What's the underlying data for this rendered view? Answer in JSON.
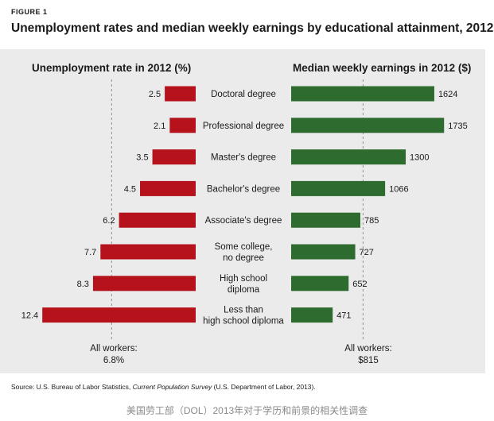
{
  "figure_label": "FIGURE 1",
  "title": "Unemployment rates and median weekly earnings by educational attainment, 2012",
  "left_heading": "Unemployment rate in 2012 (%)",
  "right_heading": "Median weekly earnings in 2012 ($)",
  "all_workers_left": {
    "line1": "All workers:",
    "line2": "6.8%"
  },
  "all_workers_right": {
    "line1": "All workers:",
    "line2": "$815"
  },
  "source": {
    "prefix": "Source: U.S. Bureau of Labor Statistics, ",
    "publication": "Current Population Survey",
    "suffix": " (U.S. Department of Labor, 2013)."
  },
  "caption": "美国劳工部（DOL）2013年对于学历和前景的相关性调查",
  "colors": {
    "unemployment": "#b5121b",
    "earnings": "#2e6b2e",
    "panel": "#ebebeb"
  },
  "chart_data": [
    {
      "type": "bar",
      "orientation": "horizontal",
      "direction": "leftward",
      "title": "Unemployment rate in 2012 (%)",
      "categories": [
        [
          "Doctoral degree"
        ],
        [
          "Professional degree"
        ],
        [
          "Master's degree"
        ],
        [
          "Bachelor's degree"
        ],
        [
          "Associate's degree"
        ],
        [
          "Some college,",
          "no degree"
        ],
        [
          "High school",
          "diploma"
        ],
        [
          "Less than",
          "high school diploma"
        ]
      ],
      "values": [
        2.5,
        2.1,
        3.5,
        4.5,
        6.2,
        7.7,
        8.3,
        12.4
      ],
      "labels": [
        "2.5",
        "2.1",
        "3.5",
        "4.5",
        "6.2",
        "7.7",
        "8.3",
        "12.4"
      ],
      "reference_line": 6.8
    },
    {
      "type": "bar",
      "orientation": "horizontal",
      "direction": "rightward",
      "title": "Median weekly earnings in 2012 ($)",
      "values": [
        1624,
        1735,
        1300,
        1066,
        785,
        727,
        652,
        471
      ],
      "labels": [
        "1624",
        "1735",
        "1300",
        "1066",
        "785",
        "727",
        "652",
        "471"
      ],
      "reference_line": 815
    }
  ]
}
